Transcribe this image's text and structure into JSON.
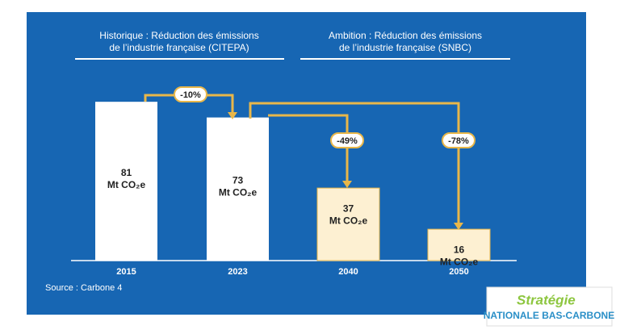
{
  "chart_data": {
    "type": "bar",
    "headers": [
      [
        "Historique : Réduction des émissions",
        "de l’industrie française (CITEPA)"
      ],
      [
        "Ambition : Réduction des émissions",
        "de l’industrie française (SNBC)"
      ]
    ],
    "categories": [
      "2015",
      "2023",
      "2040",
      "2050"
    ],
    "values": [
      81,
      73,
      37,
      16
    ],
    "unit": "Mt CO₂e",
    "colors": [
      "#ffffff",
      "#ffffff",
      "#fdf0d2",
      "#fdf0d2"
    ],
    "annotations": [
      "-10%",
      "-49%",
      "-78%"
    ],
    "source": "Source : Carbone 4",
    "logo": [
      "Stratégie",
      "NATIONALE BAS-CARBONE"
    ]
  }
}
